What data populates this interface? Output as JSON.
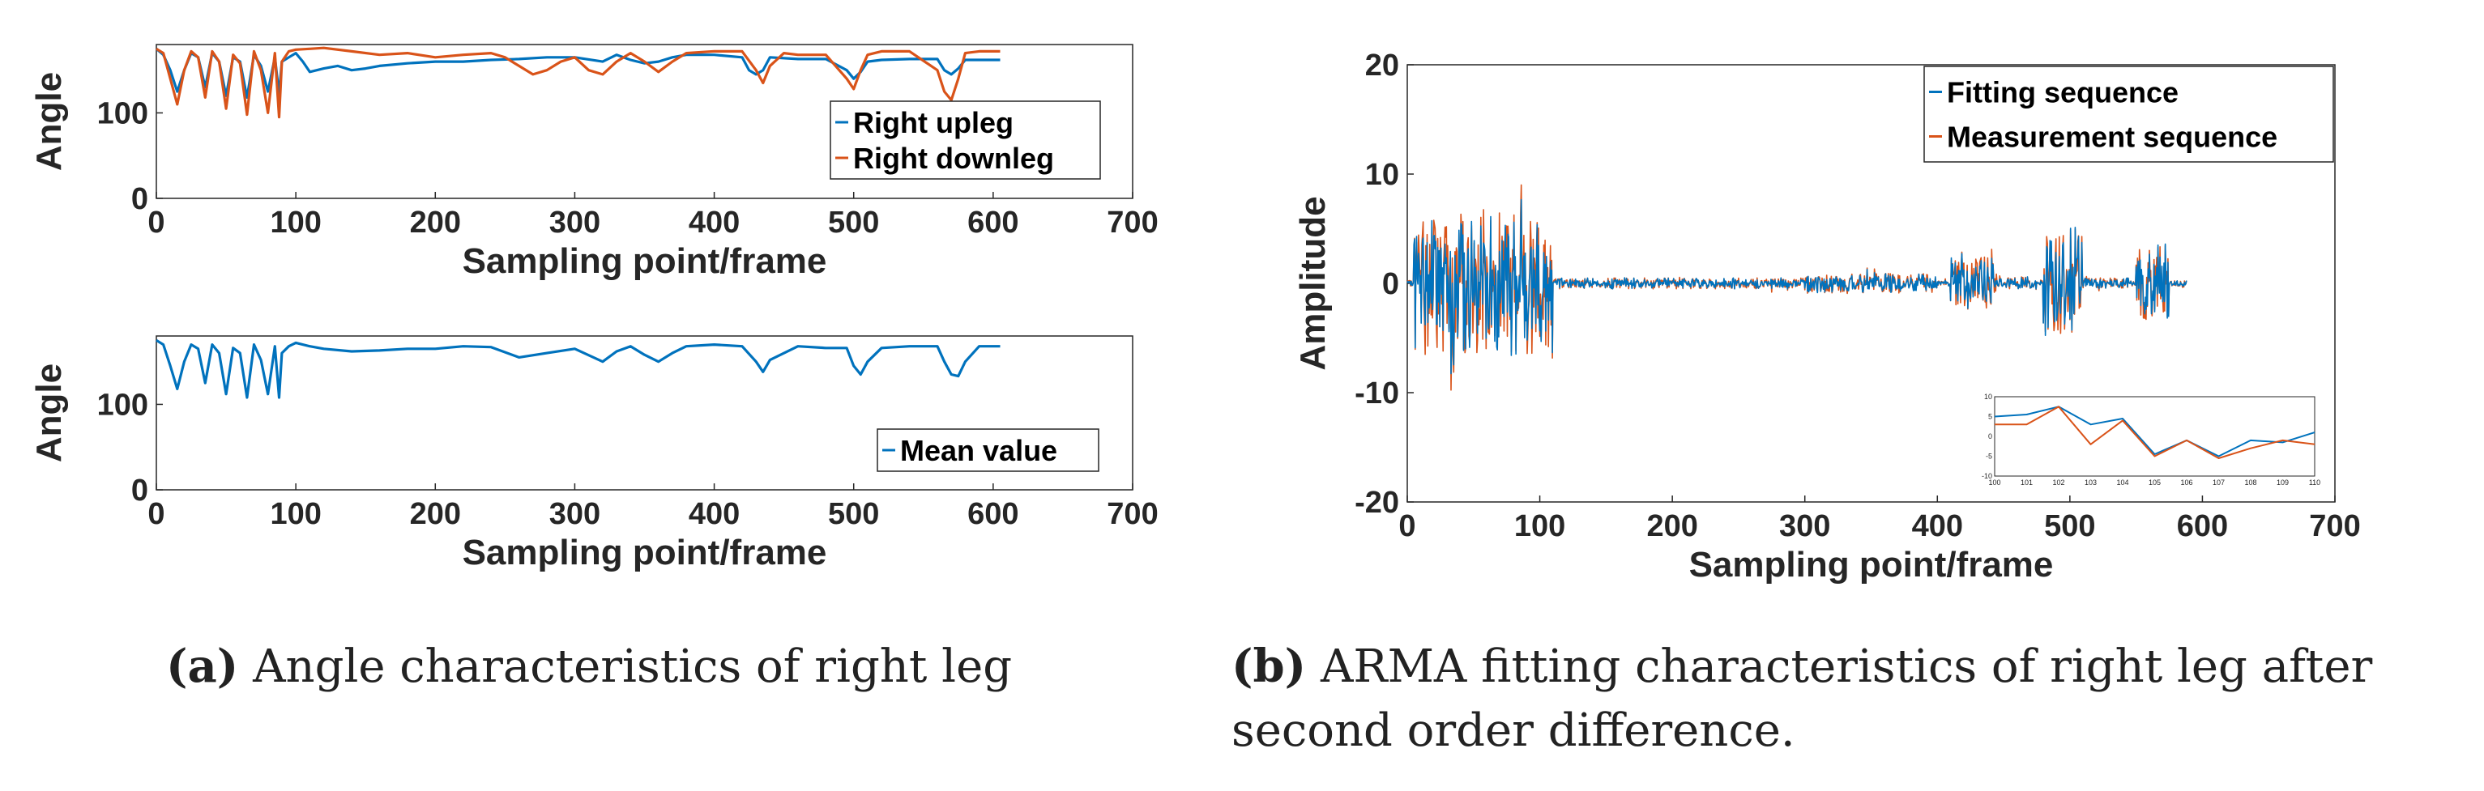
{
  "colors": {
    "blue": "#0072BD",
    "orange": "#D95319",
    "axis": "#262626"
  },
  "chart_data": [
    {
      "id": "a_top",
      "type": "line",
      "xlabel": "Sampling point/frame",
      "ylabel": "Angle",
      "xlim": [
        0,
        700
      ],
      "ylim": [
        0,
        180
      ],
      "xticks": [
        0,
        100,
        200,
        300,
        400,
        500,
        600,
        700
      ],
      "yticks": [
        0,
        100
      ],
      "legend": "right",
      "series": [
        {
          "name": "Right upleg",
          "color": "#0072BD",
          "x": [
            0,
            5,
            10,
            15,
            20,
            25,
            30,
            35,
            40,
            45,
            50,
            55,
            60,
            65,
            70,
            75,
            80,
            85,
            88,
            90,
            95,
            100,
            105,
            110,
            120,
            130,
            140,
            150,
            160,
            180,
            200,
            220,
            240,
            260,
            280,
            300,
            320,
            330,
            340,
            350,
            360,
            370,
            380,
            400,
            420,
            425,
            430,
            435,
            440,
            460,
            480,
            495,
            500,
            505,
            510,
            520,
            540,
            560,
            565,
            570,
            575,
            580,
            590,
            600,
            605
          ],
          "y": [
            175,
            168,
            150,
            125,
            150,
            170,
            165,
            130,
            170,
            160,
            120,
            165,
            160,
            118,
            168,
            155,
            125,
            165,
            122,
            160,
            165,
            170,
            160,
            148,
            152,
            155,
            150,
            152,
            155,
            158,
            160,
            160,
            162,
            163,
            165,
            165,
            160,
            168,
            162,
            158,
            160,
            165,
            168,
            168,
            165,
            150,
            145,
            150,
            165,
            163,
            163,
            150,
            140,
            148,
            160,
            162,
            163,
            163,
            150,
            145,
            152,
            162,
            162,
            162,
            162
          ]
        },
        {
          "name": "Right downleg",
          "color": "#D95319",
          "x": [
            0,
            5,
            10,
            15,
            20,
            25,
            30,
            35,
            40,
            45,
            50,
            55,
            60,
            65,
            70,
            75,
            80,
            85,
            88,
            90,
            95,
            100,
            110,
            120,
            140,
            160,
            180,
            200,
            220,
            240,
            250,
            260,
            270,
            280,
            290,
            300,
            310,
            320,
            330,
            340,
            350,
            360,
            370,
            380,
            400,
            420,
            430,
            435,
            440,
            450,
            460,
            480,
            495,
            500,
            505,
            510,
            520,
            540,
            560,
            565,
            570,
            575,
            580,
            590,
            600,
            605
          ],
          "y": [
            175,
            170,
            140,
            110,
            150,
            172,
            165,
            118,
            172,
            160,
            105,
            168,
            158,
            98,
            172,
            150,
            100,
            170,
            95,
            160,
            172,
            174,
            175,
            176,
            172,
            168,
            170,
            165,
            168,
            170,
            165,
            155,
            145,
            150,
            160,
            165,
            150,
            145,
            160,
            170,
            160,
            148,
            160,
            170,
            172,
            172,
            150,
            135,
            155,
            170,
            168,
            168,
            140,
            128,
            150,
            168,
            172,
            172,
            150,
            125,
            115,
            140,
            170,
            172,
            172,
            172
          ]
        }
      ]
    },
    {
      "id": "a_bottom",
      "type": "line",
      "xlabel": "Sampling point/frame",
      "ylabel": "Angle",
      "xlim": [
        0,
        700
      ],
      "ylim": [
        0,
        180
      ],
      "xticks": [
        0,
        100,
        200,
        300,
        400,
        500,
        600,
        700
      ],
      "yticks": [
        0,
        100
      ],
      "legend": "right",
      "series": [
        {
          "name": "Mean value",
          "color": "#0072BD",
          "x": [
            0,
            5,
            10,
            15,
            20,
            25,
            30,
            35,
            40,
            45,
            50,
            55,
            60,
            65,
            70,
            75,
            80,
            85,
            88,
            90,
            95,
            100,
            110,
            120,
            140,
            160,
            180,
            200,
            220,
            240,
            260,
            280,
            300,
            320,
            330,
            340,
            350,
            360,
            370,
            380,
            400,
            420,
            430,
            435,
            440,
            460,
            480,
            495,
            500,
            505,
            510,
            520,
            540,
            560,
            565,
            570,
            575,
            580,
            590,
            600,
            605
          ],
          "y": [
            175,
            170,
            145,
            118,
            150,
            170,
            165,
            125,
            170,
            160,
            112,
            166,
            160,
            108,
            170,
            152,
            112,
            168,
            108,
            160,
            168,
            172,
            168,
            165,
            162,
            163,
            165,
            165,
            168,
            167,
            155,
            160,
            165,
            150,
            162,
            168,
            158,
            150,
            160,
            168,
            170,
            168,
            150,
            138,
            152,
            168,
            166,
            166,
            145,
            135,
            150,
            166,
            168,
            168,
            150,
            135,
            133,
            150,
            168,
            168,
            168
          ]
        }
      ]
    },
    {
      "id": "b",
      "type": "line",
      "xlabel": "Sampling point/frame",
      "ylabel": "Amplitude",
      "xlim": [
        0,
        700
      ],
      "ylim": [
        -20,
        20
      ],
      "xticks": [
        0,
        100,
        200,
        300,
        400,
        500,
        600,
        700
      ],
      "yticks": [
        -20,
        -10,
        0,
        10,
        20
      ],
      "legend": "top-right",
      "x_range": [
        0,
        588
      ],
      "series": [
        {
          "name": "Fitting sequence",
          "color": "#0072BD"
        },
        {
          "name": "Measurement sequence",
          "color": "#D95319"
        }
      ],
      "bursts": [
        {
          "from": 5,
          "to": 110,
          "amp": 6.5
        },
        {
          "from": 110,
          "to": 300,
          "amp": 0.5
        },
        {
          "from": 300,
          "to": 400,
          "amp": 0.9
        },
        {
          "from": 410,
          "to": 445,
          "amp": 2.5
        },
        {
          "from": 445,
          "to": 475,
          "amp": 0.6
        },
        {
          "from": 480,
          "to": 510,
          "amp": 5.0
        },
        {
          "from": 510,
          "to": 545,
          "amp": 0.5
        },
        {
          "from": 550,
          "to": 575,
          "amp": 3.5
        }
      ],
      "inset": {
        "xlim": [
          100,
          110
        ],
        "ylim": [
          -10,
          10
        ],
        "xticks": [
          100,
          101,
          102,
          103,
          104,
          105,
          106,
          107,
          108,
          109,
          110
        ],
        "yticks": [
          -10,
          -5,
          0,
          5,
          10
        ],
        "fitting": [
          5,
          5.5,
          7.5,
          3,
          4.5,
          -4.5,
          -1,
          -5,
          -1,
          -1.5,
          1
        ],
        "measurement": [
          3,
          3,
          7.5,
          -2,
          4,
          -5,
          -1,
          -5.5,
          -3,
          -1,
          -2
        ]
      }
    }
  ],
  "captions": {
    "a": {
      "tag": "(a)",
      "text": "Angle characteristics of right leg"
    },
    "b": {
      "tag": "(b)",
      "text": "ARMA fitting characteristics of right leg after",
      "line2": "second order difference."
    }
  }
}
